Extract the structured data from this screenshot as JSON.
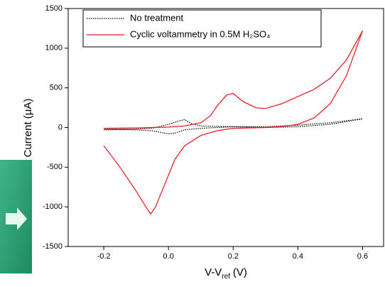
{
  "chart_data": {
    "type": "line",
    "xlabel": [
      "V-V",
      "ref",
      "(V)"
    ],
    "ylabel": "Current (μA)",
    "xlim": [
      -0.31,
      0.665
    ],
    "ylim": [
      -1500,
      1500
    ],
    "xticks": [
      -0.2,
      {
        "value": 0,
        "label": "0.0"
      },
      0.2,
      0.4,
      0.6
    ],
    "yticks": [
      -1500,
      -1000,
      -500,
      0,
      500,
      1000,
      1500
    ],
    "legend": "upper left",
    "series": [
      {
        "name": "No treatment",
        "color": "#000000",
        "style": "dotted",
        "x": [
          -0.2,
          -0.1,
          -0.05,
          0.0,
          0.03,
          0.05,
          0.07,
          0.1,
          0.2,
          0.3,
          0.4,
          0.5,
          0.6,
          0.5,
          0.4,
          0.3,
          0.2,
          0.1,
          0.05,
          0.02,
          0.0,
          -0.05,
          -0.1,
          -0.2
        ],
        "values": [
          -30,
          -20,
          -10,
          40,
          80,
          100,
          50,
          20,
          10,
          10,
          30,
          60,
          110,
          40,
          10,
          0,
          10,
          -10,
          -30,
          -70,
          -80,
          -40,
          -30,
          -20
        ]
      },
      {
        "name": "Cyclic voltammetry in 0.5M H₂SO₄",
        "color": "#e8141c",
        "style": "solid",
        "x": [
          -0.2,
          -0.15,
          -0.1,
          -0.07,
          -0.055,
          -0.04,
          -0.02,
          0.0,
          0.02,
          0.05,
          0.1,
          0.15,
          0.2,
          0.3,
          0.35,
          0.4,
          0.45,
          0.5,
          0.55,
          0.6,
          0.55,
          0.5,
          0.45,
          0.4,
          0.35,
          0.3,
          0.27,
          0.23,
          0.2,
          0.18,
          0.15,
          0.13,
          0.1,
          0.05,
          0.0,
          -0.1,
          -0.2
        ],
        "values": [
          -230,
          -500,
          -800,
          -1000,
          -1090,
          -1000,
          -800,
          -600,
          -400,
          -230,
          -100,
          -40,
          -10,
          0,
          10,
          40,
          120,
          300,
          650,
          1220,
          850,
          620,
          480,
          390,
          300,
          240,
          250,
          330,
          430,
          410,
          270,
          150,
          60,
          20,
          5,
          -5,
          -10
        ]
      }
    ]
  }
}
